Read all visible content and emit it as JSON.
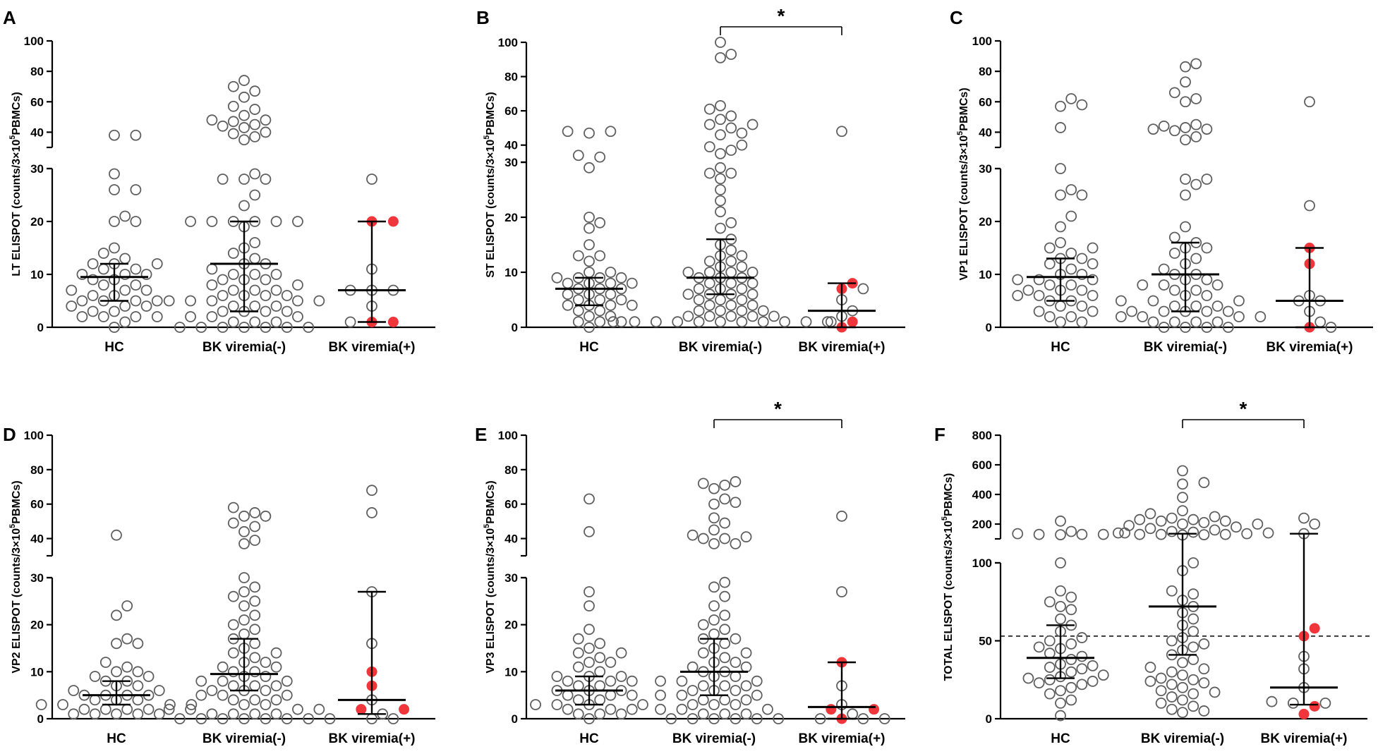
{
  "figure": {
    "colors": {
      "open_marker": "#5f5f5f",
      "filled_marker": "#f0363a",
      "axis": "#000000",
      "median_bar": "#000000"
    }
  },
  "chart_data": [
    {
      "panel": "A",
      "type": "scatter",
      "ylabel": "LT ELISPOT (counts/3×10",
      "ylabel_sup": "5",
      "ylabel_tail": "PBMCs)",
      "categories": [
        "HC",
        "BK viremia(-)",
        "BK viremia(+)"
      ],
      "broken_axis": {
        "lower": [
          0,
          30
        ],
        "upper": [
          30,
          100
        ],
        "lower_ticks": [
          "0",
          "10",
          "20",
          "30"
        ],
        "upper_ticks": [
          "40",
          "60",
          "80",
          "100"
        ]
      },
      "groups": [
        {
          "median": 9.5,
          "iqr": [
            5,
            12
          ],
          "points": [
            38,
            38,
            29,
            26,
            26,
            21,
            20,
            20,
            15,
            14,
            13,
            12,
            12,
            12,
            11,
            11,
            10,
            10,
            10,
            9,
            9,
            8,
            8,
            7,
            7,
            7,
            6,
            6,
            5,
            5,
            5,
            5,
            4,
            4,
            4,
            3,
            3,
            2,
            2,
            2,
            2,
            1,
            0
          ]
        },
        {
          "median": 12,
          "iqr": [
            3,
            20
          ],
          "points": [
            74,
            70,
            67,
            63,
            57,
            55,
            51,
            48,
            48,
            47,
            45,
            44,
            43,
            40,
            39,
            37,
            35,
            29,
            28,
            28,
            28,
            25,
            23,
            20,
            20,
            20,
            20,
            20,
            20,
            19,
            16,
            15,
            14,
            13,
            12,
            12,
            11,
            10,
            10,
            10,
            9,
            9,
            9,
            8,
            8,
            7,
            7,
            7,
            6,
            6,
            6,
            6,
            5,
            5,
            5,
            5,
            5,
            4,
            4,
            4,
            3,
            3,
            3,
            3,
            2,
            2,
            2,
            1,
            1,
            1,
            0,
            0,
            0,
            0,
            0,
            0,
            0
          ]
        },
        {
          "median": 7,
          "iqr": [
            1,
            20
          ],
          "points": [
            28,
            20,
            20,
            11,
            7,
            7,
            7,
            4,
            1,
            1,
            1
          ],
          "filled": [
            20,
            20,
            1,
            1
          ]
        }
      ]
    },
    {
      "panel": "B",
      "type": "scatter",
      "ylabel": "ST ELISPOT (counts/3×10",
      "ylabel_sup": "5",
      "ylabel_tail": "PBMCs)",
      "categories": [
        "HC",
        "BK viremia(-)",
        "BK viremia(+)"
      ],
      "broken_axis": {
        "lower": [
          0,
          30
        ],
        "upper": [
          30,
          100
        ],
        "lower_ticks": [
          "0",
          "10",
          "20",
          "30"
        ],
        "upper_ticks": [
          "40",
          "60",
          "80",
          "100"
        ]
      },
      "groups": [
        {
          "median": 7,
          "iqr": [
            4,
            9
          ],
          "points": [
            48,
            48,
            47,
            34,
            33,
            29,
            20,
            19,
            18,
            15,
            13,
            13,
            12,
            10,
            10,
            9,
            9,
            9,
            9,
            8,
            8,
            8,
            8,
            7,
            7,
            7,
            6,
            6,
            6,
            5,
            5,
            5,
            4,
            4,
            4,
            4,
            3,
            3,
            2,
            2,
            1,
            1,
            1,
            0
          ]
        },
        {
          "median": 9,
          "iqr": [
            6,
            16
          ],
          "points": [
            100,
            93,
            91,
            63,
            61,
            57,
            55,
            52,
            52,
            50,
            47,
            46,
            40,
            39,
            37,
            35,
            29,
            28,
            28,
            27,
            25,
            23,
            21,
            19,
            18,
            16,
            15,
            14,
            13,
            13,
            12,
            12,
            11,
            11,
            10,
            10,
            10,
            10,
            9,
            9,
            9,
            8,
            8,
            8,
            7,
            7,
            7,
            6,
            6,
            6,
            6,
            5,
            5,
            5,
            4,
            4,
            4,
            3,
            3,
            3,
            3,
            2,
            2,
            2,
            2,
            2,
            1,
            1,
            1,
            1,
            1,
            1,
            1,
            1,
            1,
            1,
            1
          ]
        },
        {
          "median": 3,
          "iqr": [
            0,
            8
          ],
          "points": [
            48,
            8,
            7,
            7,
            5,
            3,
            2,
            1,
            1,
            0
          ],
          "filled": [
            8,
            7,
            1,
            0
          ]
        }
      ],
      "significance": {
        "label": "*",
        "between": [
          1,
          2
        ]
      }
    },
    {
      "panel": "C",
      "type": "scatter",
      "ylabel": "VP1 ELISPOT (counts/3×10",
      "ylabel_sup": "5",
      "ylabel_tail": "PBMCs)",
      "categories": [
        "HC",
        "BK viremia(-)",
        "BK viremia(+)"
      ],
      "broken_axis": {
        "lower": [
          0,
          30
        ],
        "upper": [
          30,
          100
        ],
        "lower_ticks": [
          "0",
          "10",
          "20",
          "30"
        ],
        "upper_ticks": [
          "40",
          "60",
          "80",
          "100"
        ]
      },
      "groups": [
        {
          "median": 9.5,
          "iqr": [
            5,
            13
          ],
          "points": [
            62,
            58,
            57,
            43,
            30,
            26,
            25,
            25,
            21,
            19,
            16,
            15,
            15,
            14,
            13,
            13,
            12,
            12,
            11,
            10,
            10,
            9,
            9,
            9,
            8,
            8,
            7,
            7,
            7,
            6,
            6,
            6,
            5,
            5,
            4,
            4,
            3,
            3,
            2,
            2,
            1,
            1
          ]
        },
        {
          "median": 10,
          "iqr": [
            3,
            16
          ],
          "points": [
            85,
            83,
            73,
            66,
            62,
            60,
            45,
            44,
            43,
            42,
            42,
            41,
            37,
            35,
            28,
            28,
            27,
            25,
            19,
            17,
            16,
            15,
            15,
            14,
            13,
            12,
            11,
            10,
            10,
            9,
            9,
            8,
            8,
            8,
            7,
            7,
            6,
            6,
            5,
            5,
            5,
            4,
            4,
            4,
            3,
            3,
            3,
            3,
            3,
            2,
            2,
            2,
            2,
            1,
            1,
            1,
            1,
            0,
            0,
            0,
            0
          ]
        },
        {
          "median": 5,
          "iqr": [
            0,
            15
          ],
          "points": [
            60,
            23,
            15,
            12,
            6,
            5,
            5,
            3,
            1,
            0,
            0
          ],
          "filled": [
            15,
            12,
            0
          ]
        }
      ]
    },
    {
      "panel": "D",
      "type": "scatter",
      "ylabel": "VP2 ELISPOT (counts/3×10",
      "ylabel_sup": "5",
      "ylabel_tail": "PBMCs)",
      "categories": [
        "HC",
        "BK viremia(-)",
        "BK viremia(+)"
      ],
      "broken_axis": {
        "lower": [
          0,
          30
        ],
        "upper": [
          30,
          100
        ],
        "lower_ticks": [
          "0",
          "10",
          "20",
          "30"
        ],
        "upper_ticks": [
          "40",
          "60",
          "80",
          "100"
        ]
      },
      "groups": [
        {
          "median": 5,
          "iqr": [
            3,
            8
          ],
          "points": [
            42,
            24,
            22,
            17,
            16,
            16,
            12,
            11,
            10,
            10,
            9,
            9,
            8,
            8,
            7,
            7,
            6,
            6,
            5,
            5,
            5,
            5,
            4,
            4,
            4,
            3,
            3,
            3,
            3,
            2,
            2,
            2,
            2,
            1,
            1,
            1,
            1,
            1
          ]
        },
        {
          "median": 9.5,
          "iqr": [
            6,
            17
          ],
          "points": [
            58,
            55,
            53,
            53,
            49,
            47,
            44,
            39,
            37,
            30,
            28,
            27,
            26,
            25,
            24,
            22,
            21,
            20,
            19,
            18,
            17,
            16,
            15,
            14,
            14,
            13,
            12,
            12,
            11,
            11,
            10,
            10,
            9,
            9,
            8,
            8,
            8,
            7,
            7,
            7,
            6,
            6,
            6,
            5,
            5,
            5,
            4,
            4,
            4,
            3,
            3,
            2,
            2,
            2,
            2,
            1,
            1,
            1,
            1,
            0,
            0,
            0,
            0,
            0,
            0,
            0,
            0
          ]
        },
        {
          "median": 4,
          "iqr": [
            1,
            27
          ],
          "points": [
            68,
            55,
            27,
            16,
            10,
            7,
            4,
            2,
            2,
            1,
            0,
            0
          ],
          "filled": [
            10,
            7,
            2,
            2
          ]
        }
      ]
    },
    {
      "panel": "E",
      "type": "scatter",
      "ylabel": "VP3 ELISPOT (counts/3×10",
      "ylabel_sup": "5",
      "ylabel_tail": "PBMCs)",
      "categories": [
        "HC",
        "BK viremia(-)",
        "BK viremia(+)"
      ],
      "broken_axis": {
        "lower": [
          0,
          30
        ],
        "upper": [
          30,
          100
        ],
        "lower_ticks": [
          "0",
          "10",
          "20",
          "30"
        ],
        "upper_ticks": [
          "40",
          "60",
          "80",
          "100"
        ]
      },
      "groups": [
        {
          "median": 6,
          "iqr": [
            3,
            9
          ],
          "points": [
            63,
            44,
            27,
            24,
            19,
            17,
            16,
            15,
            14,
            14,
            13,
            12,
            12,
            11,
            10,
            9,
            9,
            9,
            8,
            8,
            8,
            7,
            7,
            6,
            6,
            6,
            5,
            5,
            5,
            4,
            4,
            3,
            3,
            3,
            3,
            2,
            2,
            2,
            1,
            1,
            1,
            0
          ]
        },
        {
          "median": 10,
          "iqr": [
            5,
            17
          ],
          "points": [
            73,
            72,
            71,
            69,
            63,
            61,
            60,
            52,
            49,
            45,
            42,
            41,
            40,
            40,
            37,
            37,
            29,
            28,
            26,
            24,
            22,
            21,
            20,
            19,
            18,
            17,
            17,
            16,
            15,
            14,
            14,
            13,
            12,
            12,
            11,
            11,
            10,
            10,
            9,
            9,
            8,
            8,
            8,
            7,
            7,
            7,
            6,
            6,
            6,
            5,
            5,
            5,
            4,
            4,
            4,
            3,
            3,
            3,
            2,
            2,
            2,
            1,
            1,
            1,
            0,
            0,
            0,
            0,
            0,
            0
          ]
        },
        {
          "median": 2.5,
          "iqr": [
            0,
            12
          ],
          "points": [
            53,
            27,
            12,
            7,
            3,
            2,
            2,
            1,
            0,
            0,
            0,
            0
          ],
          "filled": [
            12,
            2,
            2,
            0
          ]
        }
      ],
      "significance": {
        "label": "*",
        "between": [
          1,
          2
        ]
      }
    },
    {
      "panel": "F",
      "type": "scatter",
      "ylabel": "TOTAL ELISPOT (counts/3×10",
      "ylabel_sup": "5",
      "ylabel_tail": "PBMCs)",
      "categories": [
        "HC",
        "BK viremia(-)",
        "BK viremia(+)"
      ],
      "broken_axis": {
        "lower": [
          0,
          100
        ],
        "upper": [
          100,
          800
        ],
        "lower_ticks": [
          "0",
          "50",
          "100"
        ],
        "upper_ticks": [
          "200",
          "400",
          "600",
          "800"
        ]
      },
      "reference_line": 53,
      "groups": [
        {
          "median": 39,
          "iqr": [
            26,
            60
          ],
          "points": [
            220,
            150,
            140,
            135,
            130,
            130,
            130,
            128,
            100,
            82,
            78,
            75,
            72,
            70,
            64,
            60,
            56,
            52,
            50,
            48,
            46,
            45,
            42,
            40,
            38,
            35,
            34,
            33,
            32,
            30,
            28,
            27,
            26,
            25,
            24,
            23,
            22,
            20,
            18,
            16,
            12,
            10,
            2
          ]
        },
        {
          "median": 72,
          "iqr": [
            41,
            135
          ],
          "points": [
            560,
            480,
            470,
            380,
            290,
            270,
            250,
            240,
            230,
            230,
            220,
            220,
            210,
            200,
            200,
            190,
            180,
            170,
            160,
            150,
            145,
            140,
            140,
            135,
            130,
            130,
            130,
            128,
            126,
            100,
            95,
            82,
            80,
            76,
            72,
            68,
            64,
            60,
            56,
            52,
            50,
            48,
            46,
            44,
            41,
            38,
            36,
            33,
            32,
            30,
            28,
            26,
            25,
            24,
            23,
            22,
            20,
            18,
            17,
            16,
            14,
            12,
            10,
            8,
            6,
            5,
            4
          ]
        },
        {
          "median": 20,
          "iqr": [
            9,
            135
          ],
          "points": [
            240,
            200,
            135,
            58,
            53,
            40,
            32,
            20,
            11,
            10,
            10,
            8,
            3
          ],
          "filled": [
            58,
            53,
            8,
            3
          ]
        }
      ],
      "significance": {
        "label": "*",
        "between": [
          1,
          2
        ]
      }
    }
  ]
}
